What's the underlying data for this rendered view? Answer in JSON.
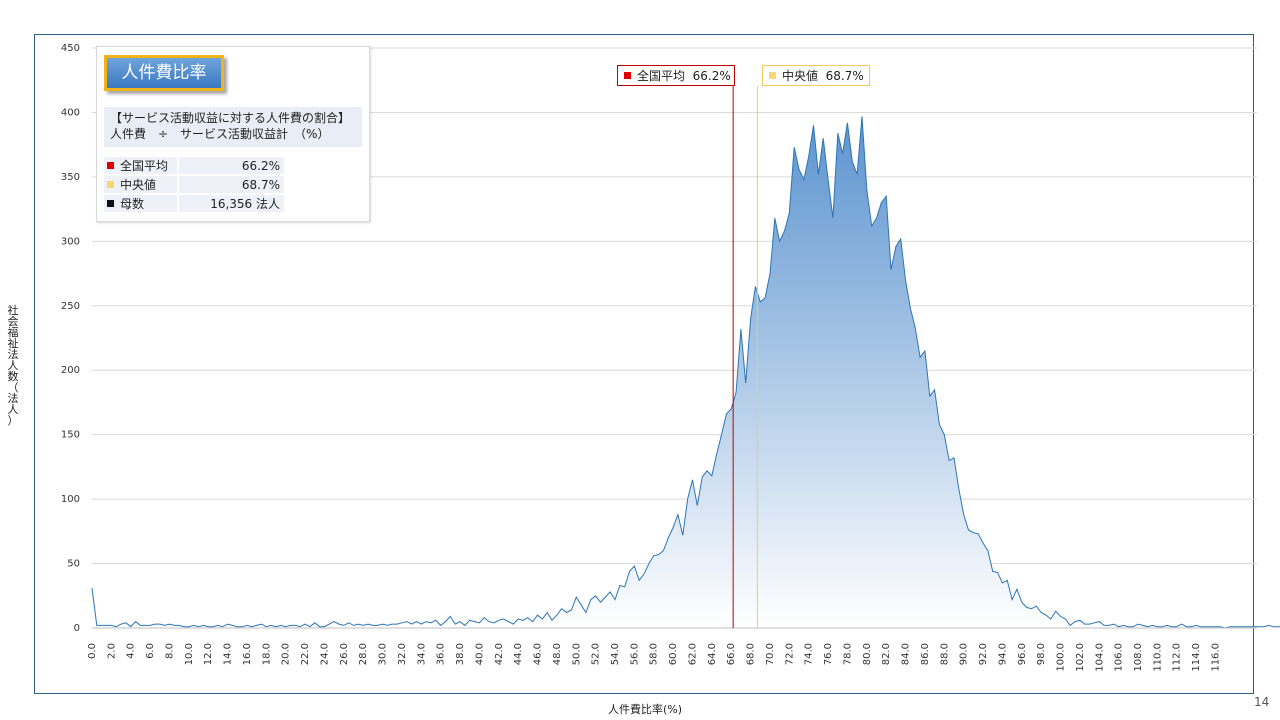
{
  "info_box": {
    "badge": "人件費比率",
    "description_line1": "【サービス活動収益に対する人件費の割合】",
    "description_line2": "人件費　÷　サービス活動収益計　（%）",
    "stats": [
      {
        "label": "全国平均",
        "value": "66.2%",
        "color": "#e00000"
      },
      {
        "label": "中央値",
        "value": "68.7%",
        "color": "#f7d774"
      },
      {
        "label": "母数",
        "value": "16,356  法人",
        "color": "#111111"
      }
    ]
  },
  "markers": {
    "mean": {
      "label": "全国平均",
      "value_text": "66.2%",
      "x": 66.2,
      "color": "#c00000"
    },
    "median": {
      "label": "中央値",
      "value_text": "68.7%",
      "x": 68.7,
      "color": "#f2cd5c"
    }
  },
  "y_axis_title": "社会福祉法人数（法人）",
  "x_axis_title": "人件費比率(%)",
  "page_number": "14",
  "chart_data": {
    "type": "area",
    "xlabel": "人件費比率(%)",
    "ylabel": "社会福祉法人数（法人）",
    "xlim": [
      0,
      117.5
    ],
    "ylim": [
      0,
      450
    ],
    "y_ticks": [
      0,
      50,
      100,
      150,
      200,
      250,
      300,
      350,
      400,
      450
    ],
    "x_tick_labels": [
      "0.0",
      "2.0",
      "4.0",
      "6.0",
      "8.0",
      "10.0",
      "12.0",
      "14.0",
      "16.0",
      "18.0",
      "20.0",
      "22.0",
      "24.0",
      "26.0",
      "28.0",
      "30.0",
      "32.0",
      "34.0",
      "36.0",
      "38.0",
      "40.0",
      "42.0",
      "44.0",
      "46.0",
      "48.0",
      "50.0",
      "52.0",
      "54.0",
      "56.0",
      "58.0",
      "60.0",
      "62.0",
      "64.0",
      "66.0",
      "68.0",
      "70.0",
      "72.0",
      "74.0",
      "76.0",
      "78.0",
      "80.0",
      "82.0",
      "84.0",
      "86.0",
      "88.0",
      "90.0",
      "92.0",
      "94.0",
      "96.0",
      "98.0",
      "100.0",
      "102.0",
      "104.0",
      "106.0",
      "108.0",
      "110.0",
      "112.0",
      "114.0",
      "116.0"
    ],
    "grid": true,
    "bin_width": 0.5,
    "series": [
      {
        "values": [
          31,
          2,
          2,
          2,
          2,
          1,
          3,
          4,
          1,
          5,
          2,
          2,
          2,
          3,
          3,
          2,
          3,
          2,
          2,
          1,
          1,
          2,
          1,
          2,
          1,
          1,
          2,
          1,
          3,
          2,
          1,
          1,
          2,
          1,
          2,
          3,
          1,
          2,
          1,
          2,
          1,
          2,
          2,
          1,
          3,
          1,
          4,
          1,
          1,
          3,
          5,
          3,
          2,
          4,
          2,
          3,
          2,
          3,
          2,
          2,
          3,
          2,
          3,
          3,
          4,
          5,
          3,
          5,
          3,
          5,
          4,
          6,
          2,
          5,
          9,
          3,
          5,
          2,
          6,
          5,
          4,
          8,
          5,
          4,
          6,
          7,
          5,
          3,
          7,
          6,
          8,
          5,
          10,
          7,
          12,
          6,
          10,
          15,
          12,
          14,
          24,
          18,
          12,
          22,
          25,
          20,
          24,
          28,
          22,
          33,
          32,
          44,
          48,
          37,
          42,
          50,
          56,
          57,
          60,
          70,
          78,
          88,
          72,
          100,
          115,
          95,
          117,
          122,
          118,
          135,
          150,
          166,
          170,
          183,
          232,
          190,
          240,
          265,
          253,
          256,
          275,
          318,
          300,
          308,
          322,
          373,
          356,
          348,
          366,
          390,
          352,
          380,
          348,
          318,
          384,
          368,
          392,
          362,
          352,
          397,
          340,
          312,
          318,
          330,
          335,
          278,
          296,
          302,
          270,
          248,
          233,
          210,
          215,
          180,
          185,
          158,
          150,
          130,
          132,
          108,
          88,
          76,
          74,
          73,
          66,
          60,
          44,
          43,
          35,
          37,
          22,
          30,
          20,
          16,
          15,
          17,
          12,
          10,
          7,
          13,
          9,
          7,
          2,
          5,
          6,
          3,
          3,
          4,
          5,
          2,
          2,
          3,
          1,
          2,
          1,
          1,
          3,
          2,
          1,
          2,
          1,
          1,
          2,
          1,
          1,
          3,
          1,
          1,
          2,
          1,
          1,
          1,
          1,
          1,
          0,
          1,
          1,
          1,
          1,
          1,
          1,
          1,
          1,
          2,
          1,
          1,
          1,
          1,
          0,
          1,
          1,
          0,
          0,
          1,
          1,
          1,
          1,
          0,
          1,
          0,
          1
        ]
      }
    ]
  }
}
